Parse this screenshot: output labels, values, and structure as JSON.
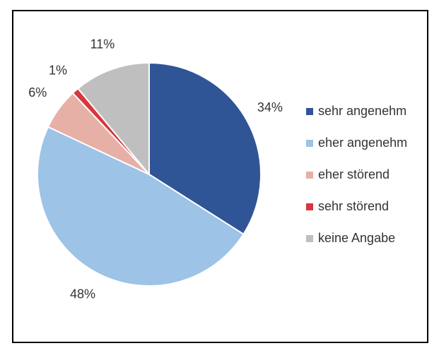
{
  "chart_data": {
    "type": "pie",
    "categories": [
      "sehr angenehm",
      "eher angenehm",
      "eher störend",
      "sehr störend",
      "keine Angabe"
    ],
    "values": [
      34,
      48,
      6,
      1,
      11
    ],
    "value_labels": [
      "34%",
      "48%",
      "6%",
      "1%",
      "11%"
    ],
    "colors": [
      "#2f5597",
      "#9dc3e6",
      "#e6b0a6",
      "#d9363e",
      "#bfbfbf"
    ]
  }
}
